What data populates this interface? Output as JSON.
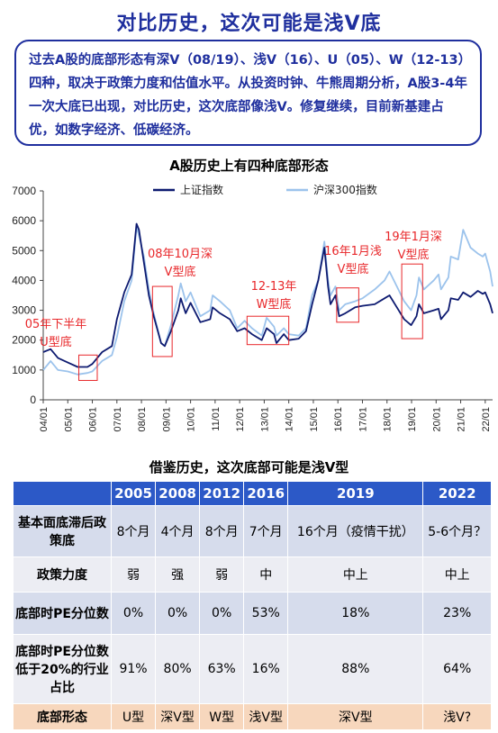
{
  "page": {
    "title": "对比历史，这次可能是浅V底",
    "summary": "过去A股的底部形态有深V（08/19）、浅V（16）、U（05）、W（12-13）四种，取决于政策力度和估值水平。从投资时钟、牛熊周期分析，A股3-4年一次大底已出现，对比历史，这次底部像浅V。修复继续，目前新基建占优，如数字经济、低碳经济。"
  },
  "colors": {
    "title": "#1f2f9e",
    "sse_line": "#0d1a70",
    "csi300_line": "#9cc3ec",
    "annotation": "#e8272a",
    "table_header": "#2c59c7",
    "table_last_row": "#f7d7bd"
  },
  "chart_data": {
    "type": "line",
    "title": "A股历史上有四种底部形态",
    "ylim": [
      0,
      7000
    ],
    "yticks": [
      0,
      1000,
      2000,
      3000,
      4000,
      5000,
      6000,
      7000
    ],
    "x_tick_labels": [
      "04/01",
      "05/01",
      "06/01",
      "07/01",
      "08/01",
      "09/01",
      "10/01",
      "11/01",
      "12/01",
      "13/01",
      "14/01",
      "15/01",
      "16/01",
      "17/01",
      "18/01",
      "19/01",
      "20/01",
      "21/01",
      "22/01"
    ],
    "legend_position": "top",
    "grid": false,
    "series": [
      {
        "name": "上证指数",
        "points": [
          [
            2004.0,
            1600
          ],
          [
            2004.3,
            1700
          ],
          [
            2004.6,
            1400
          ],
          [
            2005.0,
            1250
          ],
          [
            2005.4,
            1100
          ],
          [
            2005.8,
            1100
          ],
          [
            2006.0,
            1200
          ],
          [
            2006.4,
            1600
          ],
          [
            2006.8,
            1800
          ],
          [
            2007.0,
            2700
          ],
          [
            2007.3,
            3600
          ],
          [
            2007.6,
            4200
          ],
          [
            2007.8,
            5900
          ],
          [
            2007.9,
            5700
          ],
          [
            2008.1,
            4600
          ],
          [
            2008.3,
            3500
          ],
          [
            2008.5,
            2800
          ],
          [
            2008.8,
            1900
          ],
          [
            2008.95,
            1800
          ],
          [
            2009.2,
            2300
          ],
          [
            2009.5,
            3000
          ],
          [
            2009.6,
            3400
          ],
          [
            2009.8,
            2900
          ],
          [
            2010.0,
            3250
          ],
          [
            2010.4,
            2600
          ],
          [
            2010.8,
            2700
          ],
          [
            2010.9,
            3100
          ],
          [
            2011.2,
            2900
          ],
          [
            2011.6,
            2700
          ],
          [
            2011.9,
            2300
          ],
          [
            2012.2,
            2400
          ],
          [
            2012.5,
            2200
          ],
          [
            2012.9,
            2000
          ],
          [
            2013.1,
            2400
          ],
          [
            2013.4,
            2200
          ],
          [
            2013.5,
            1900
          ],
          [
            2013.8,
            2200
          ],
          [
            2014.0,
            2000
          ],
          [
            2014.4,
            2050
          ],
          [
            2014.7,
            2300
          ],
          [
            2014.95,
            3200
          ],
          [
            2015.2,
            4000
          ],
          [
            2015.45,
            5100
          ],
          [
            2015.6,
            3800
          ],
          [
            2015.7,
            3200
          ],
          [
            2015.9,
            3500
          ],
          [
            2016.05,
            2800
          ],
          [
            2016.3,
            2900
          ],
          [
            2016.7,
            3100
          ],
          [
            2017.0,
            3150
          ],
          [
            2017.5,
            3200
          ],
          [
            2017.9,
            3400
          ],
          [
            2018.1,
            3500
          ],
          [
            2018.4,
            3100
          ],
          [
            2018.7,
            2700
          ],
          [
            2018.98,
            2500
          ],
          [
            2019.2,
            2800
          ],
          [
            2019.3,
            3200
          ],
          [
            2019.5,
            2900
          ],
          [
            2019.9,
            3000
          ],
          [
            2020.1,
            3050
          ],
          [
            2020.2,
            2700
          ],
          [
            2020.5,
            3000
          ],
          [
            2020.6,
            3400
          ],
          [
            2020.9,
            3350
          ],
          [
            2021.1,
            3600
          ],
          [
            2021.4,
            3450
          ],
          [
            2021.7,
            3650
          ],
          [
            2021.9,
            3550
          ],
          [
            2022.0,
            3600
          ],
          [
            2022.2,
            3200
          ],
          [
            2022.3,
            2900
          ]
        ]
      },
      {
        "name": "沪深300指数",
        "points": [
          [
            2004.0,
            1000
          ],
          [
            2004.3,
            1300
          ],
          [
            2004.6,
            1000
          ],
          [
            2005.0,
            950
          ],
          [
            2005.4,
            850
          ],
          [
            2005.8,
            900
          ],
          [
            2006.0,
            950
          ],
          [
            2006.4,
            1300
          ],
          [
            2006.8,
            1500
          ],
          [
            2007.0,
            2100
          ],
          [
            2007.3,
            3300
          ],
          [
            2007.6,
            4000
          ],
          [
            2007.8,
            5800
          ],
          [
            2007.9,
            5500
          ],
          [
            2008.1,
            4800
          ],
          [
            2008.3,
            3700
          ],
          [
            2008.5,
            2900
          ],
          [
            2008.8,
            1900
          ],
          [
            2008.95,
            1800
          ],
          [
            2009.2,
            2500
          ],
          [
            2009.5,
            3500
          ],
          [
            2009.6,
            3900
          ],
          [
            2009.8,
            3300
          ],
          [
            2010.0,
            3600
          ],
          [
            2010.4,
            2800
          ],
          [
            2010.8,
            3000
          ],
          [
            2010.9,
            3500
          ],
          [
            2011.2,
            3300
          ],
          [
            2011.6,
            3000
          ],
          [
            2011.9,
            2400
          ],
          [
            2012.2,
            2650
          ],
          [
            2012.5,
            2400
          ],
          [
            2012.9,
            2150
          ],
          [
            2013.1,
            2750
          ],
          [
            2013.4,
            2450
          ],
          [
            2013.5,
            2150
          ],
          [
            2013.8,
            2400
          ],
          [
            2014.0,
            2200
          ],
          [
            2014.4,
            2150
          ],
          [
            2014.7,
            2400
          ],
          [
            2014.95,
            3500
          ],
          [
            2015.2,
            4000
          ],
          [
            2015.45,
            5300
          ],
          [
            2015.6,
            4000
          ],
          [
            2015.7,
            3500
          ],
          [
            2015.9,
            3800
          ],
          [
            2016.05,
            3000
          ],
          [
            2016.3,
            3200
          ],
          [
            2016.7,
            3300
          ],
          [
            2017.0,
            3400
          ],
          [
            2017.5,
            3700
          ],
          [
            2017.9,
            4000
          ],
          [
            2018.1,
            4300
          ],
          [
            2018.4,
            3800
          ],
          [
            2018.7,
            3300
          ],
          [
            2018.98,
            3000
          ],
          [
            2019.2,
            3500
          ],
          [
            2019.3,
            4100
          ],
          [
            2019.5,
            3700
          ],
          [
            2019.9,
            4000
          ],
          [
            2020.1,
            4200
          ],
          [
            2020.2,
            3700
          ],
          [
            2020.5,
            4100
          ],
          [
            2020.6,
            4800
          ],
          [
            2020.9,
            4700
          ],
          [
            2021.1,
            5700
          ],
          [
            2021.4,
            5100
          ],
          [
            2021.7,
            4900
          ],
          [
            2021.9,
            4800
          ],
          [
            2022.0,
            4900
          ],
          [
            2022.2,
            4300
          ],
          [
            2022.3,
            3800
          ]
        ]
      }
    ],
    "annotations": [
      {
        "label": "05年下半年U型底",
        "x0": 2005.45,
        "x1": 2006.2,
        "y0": 650,
        "y1": 1500
      },
      {
        "label": "08年10月深V型底",
        "x0": 2008.45,
        "x1": 2009.25,
        "y0": 1450,
        "y1": 3800
      },
      {
        "label": "12-13年W型底",
        "x0": 2012.3,
        "x1": 2014.0,
        "y0": 1850,
        "y1": 2800
      },
      {
        "label": "16年1月浅V型底",
        "x0": 2015.95,
        "x1": 2016.85,
        "y0": 2600,
        "y1": 3750
      },
      {
        "label": "19年1月深V型底",
        "x0": 2018.6,
        "x1": 2019.45,
        "y0": 2050,
        "y1": 4550
      }
    ]
  },
  "table": {
    "title": "借鉴历史，这次底部可能是浅V型",
    "header": [
      "",
      "2005",
      "2008",
      "2012",
      "2016",
      "2019",
      "2022"
    ],
    "rows": [
      [
        "基本面底滞后政策底",
        "8个月",
        "4个月",
        "8个月",
        "7个月",
        "16个月（疫情干扰）",
        "5-6个月？"
      ],
      [
        "政策力度",
        "弱",
        "强",
        "弱",
        "中",
        "中上",
        "中上"
      ],
      [
        "底部时PE分位数",
        "0%",
        "0%",
        "0%",
        "53%",
        "18%",
        "23%"
      ],
      [
        "底部时PE分位数低于20%的行业占比",
        "91%",
        "80%",
        "63%",
        "16%",
        "88%",
        "64%"
      ],
      [
        "底部形态",
        "U型",
        "深V型",
        "W型",
        "浅V型",
        "深V型",
        "浅V?"
      ]
    ]
  }
}
